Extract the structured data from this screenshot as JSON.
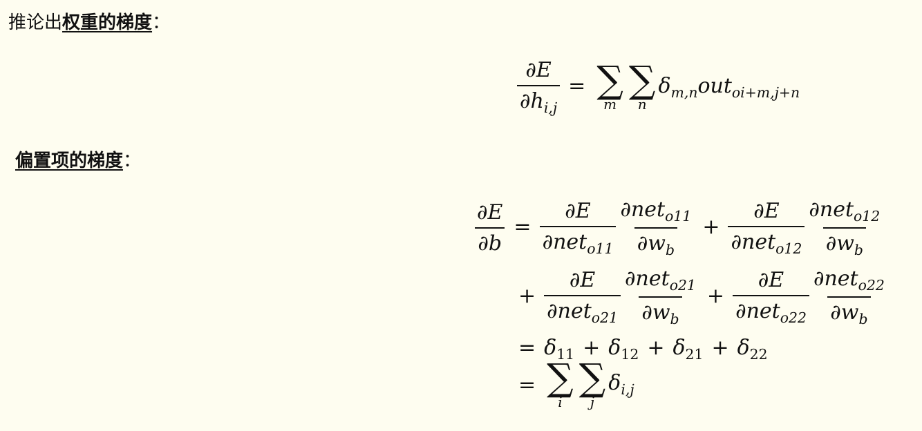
{
  "weight_heading": {
    "prefix": "推论出",
    "bold": "权重的梯度",
    "colon": "："
  },
  "bias_heading": {
    "bold": "偏置项的梯度",
    "colon": "："
  }
}
